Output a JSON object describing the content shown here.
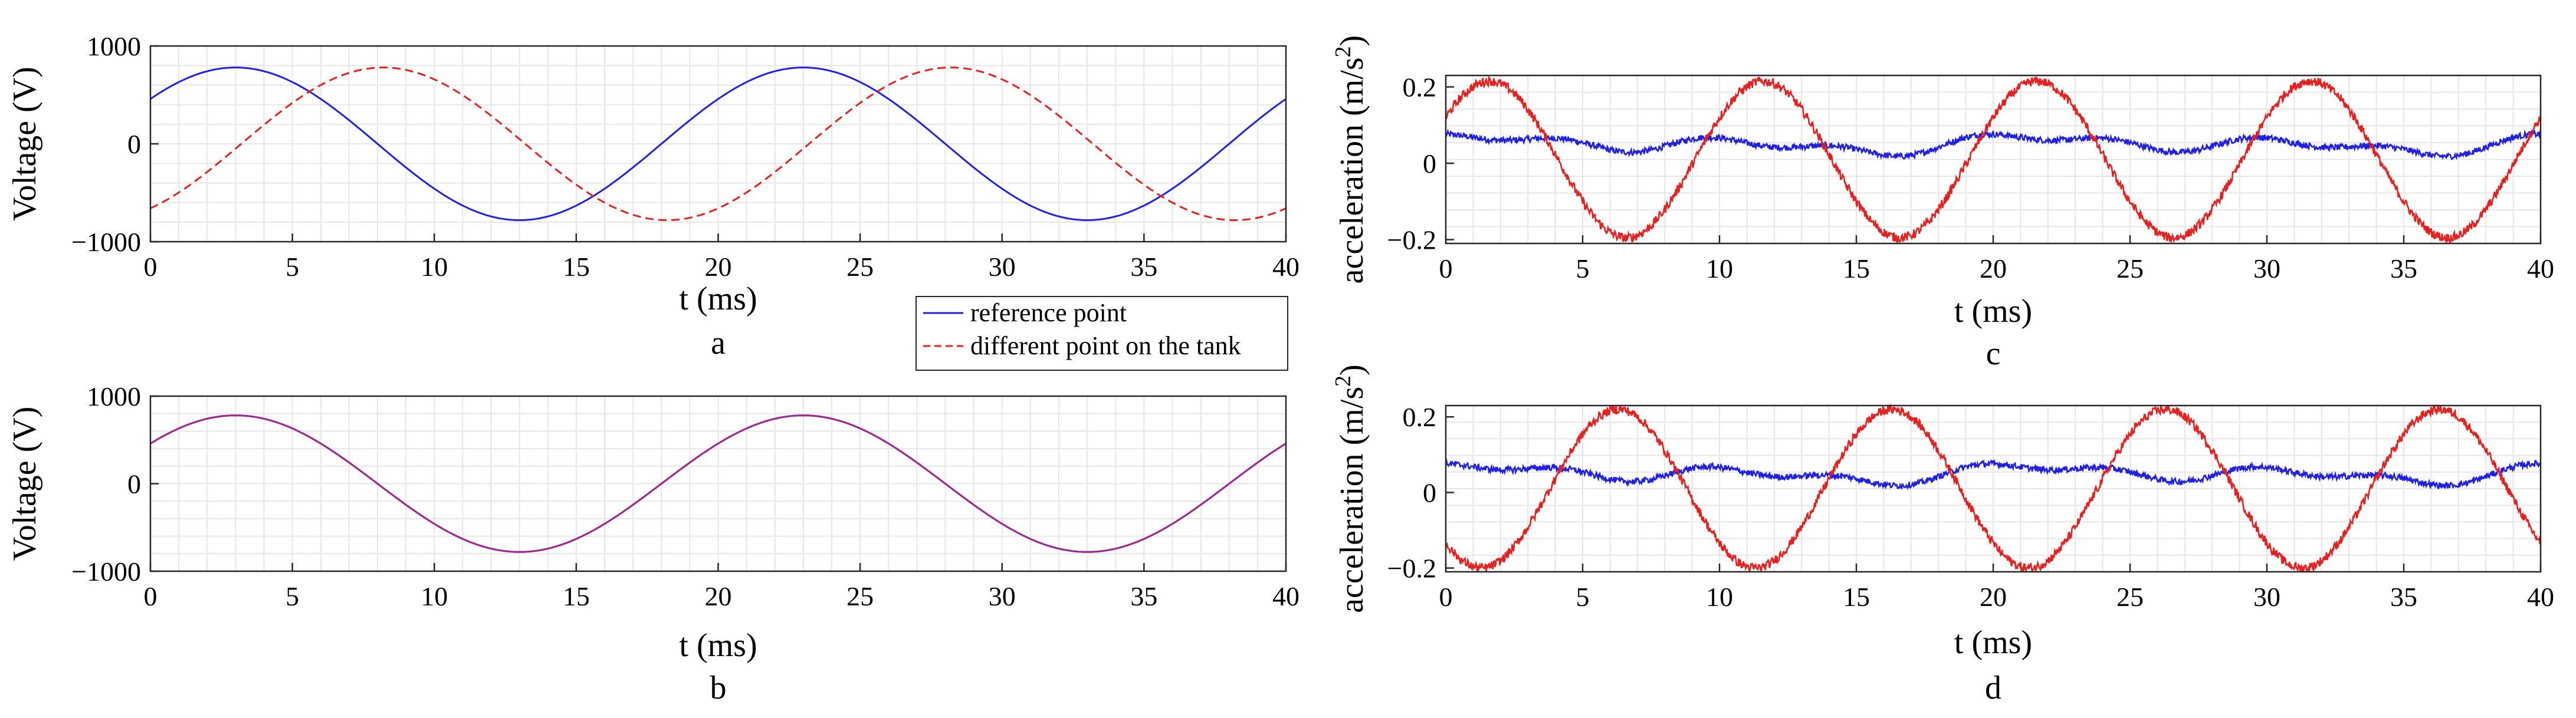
{
  "chart_data": [
    {
      "panel": "a",
      "type": "line",
      "xlabel": "t (ms)",
      "ylabel": "Voltage (V)",
      "xlim": [
        0,
        40
      ],
      "ylim": [
        -1000,
        1000
      ],
      "xticks": [
        "0",
        "5",
        "10",
        "15",
        "20",
        "25",
        "30",
        "35",
        "40"
      ],
      "yticks": [
        "-1000",
        "0",
        "1000"
      ],
      "grid": true,
      "series": [
        {
          "name": "reference point",
          "color": "#1f1fe6",
          "style": "solid",
          "wave": "sine",
          "amplitude": 780,
          "period_ms": 20,
          "peak_at_ms": 3,
          "offset": 0
        },
        {
          "name": "different point on the tank",
          "color": "#e61f1f",
          "style": "dashed",
          "wave": "sine",
          "amplitude": 780,
          "period_ms": 20,
          "peak_at_ms": 8.2,
          "offset": 0
        }
      ],
      "legend": {
        "position": "bottom-right",
        "entries": [
          "reference point",
          "different point on the tank"
        ]
      }
    },
    {
      "panel": "b",
      "type": "line",
      "xlabel": "t (ms)",
      "ylabel": "Voltage (V)",
      "xlim": [
        0,
        40
      ],
      "ylim": [
        -1000,
        1000
      ],
      "xticks": [
        "0",
        "5",
        "10",
        "15",
        "20",
        "25",
        "30",
        "35",
        "40"
      ],
      "yticks": [
        "-1000",
        "0",
        "1000"
      ],
      "grid": true,
      "series": [
        {
          "name": "reference point",
          "color": "#1f1fe6",
          "style": "solid",
          "wave": "sine",
          "amplitude": 780,
          "period_ms": 20,
          "peak_at_ms": 3,
          "offset": 0
        },
        {
          "name": "different point on the tank",
          "color": "#a0288c",
          "style": "solid",
          "wave": "sine",
          "amplitude": 780,
          "period_ms": 20,
          "peak_at_ms": 3,
          "offset": 0
        }
      ]
    },
    {
      "panel": "c",
      "type": "line",
      "xlabel": "t (ms)",
      "ylabel": "acceleration (m/s2)",
      "xlim": [
        0,
        40
      ],
      "ylim": [
        -0.21,
        0.23
      ],
      "xticks": [
        "0",
        "5",
        "10",
        "15",
        "20",
        "25",
        "30",
        "35",
        "40"
      ],
      "yticks": [
        "-0.2",
        "0",
        "0.2"
      ],
      "grid": true,
      "series": [
        {
          "name": "reference point",
          "color": "#1f1fe6",
          "style": "solid",
          "wave": "ripple",
          "amplitude": 0.02,
          "period_ms": 10,
          "peak_at_ms": 0,
          "offset": 0.05,
          "noise": 0.008
        },
        {
          "name": "different point on the tank",
          "color": "#e61f1f",
          "style": "solid",
          "wave": "sine",
          "amplitude": 0.205,
          "period_ms": 10,
          "peak_at_ms": 1.6,
          "offset": 0.01,
          "noise": 0.012
        }
      ]
    },
    {
      "panel": "d",
      "type": "line",
      "xlabel": "t (ms)",
      "ylabel": "acceleration (m/s2)",
      "xlim": [
        0,
        40
      ],
      "ylim": [
        -0.21,
        0.23
      ],
      "xticks": [
        "0",
        "5",
        "10",
        "15",
        "20",
        "25",
        "30",
        "35",
        "40"
      ],
      "yticks": [
        "-0.2",
        "0",
        "0.2"
      ],
      "grid": true,
      "series": [
        {
          "name": "reference point",
          "color": "#1f1fe6",
          "style": "solid",
          "wave": "ripple",
          "amplitude": 0.02,
          "period_ms": 10,
          "peak_at_ms": 0,
          "offset": 0.05,
          "noise": 0.008
        },
        {
          "name": "different point on the tank",
          "color": "#e61f1f",
          "style": "solid",
          "wave": "sine",
          "amplitude": 0.21,
          "period_ms": 10,
          "peak_at_ms": 6.3,
          "offset": 0.01,
          "noise": 0.012
        }
      ]
    }
  ],
  "panel_labels": [
    "a",
    "b",
    "c",
    "d"
  ]
}
